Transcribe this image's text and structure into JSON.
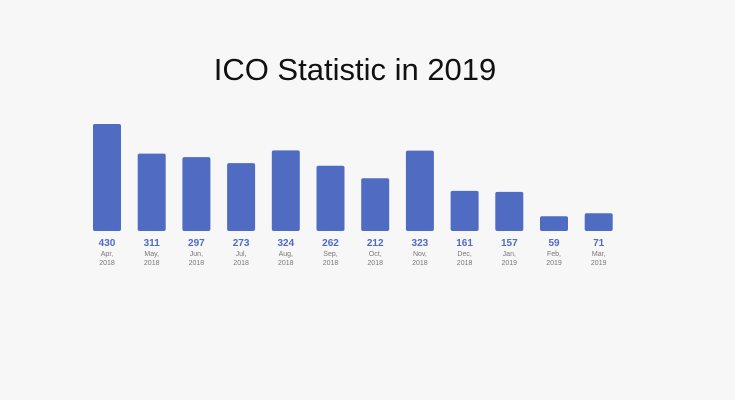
{
  "chart_data": {
    "type": "bar",
    "title": "ICO Statistic in 2019",
    "categories": [
      [
        "Apr,",
        "2018"
      ],
      [
        "May,",
        "2018"
      ],
      [
        "Jun,",
        "2018"
      ],
      [
        "Jul,",
        "2018"
      ],
      [
        "Aug,",
        "2018"
      ],
      [
        "Sep,",
        "2018"
      ],
      [
        "Oct,",
        "2018"
      ],
      [
        "Nov,",
        "2018"
      ],
      [
        "Dec,",
        "2018"
      ],
      [
        "Jan,",
        "2019"
      ],
      [
        "Feb,",
        "2019"
      ],
      [
        "Mar,",
        "2019"
      ]
    ],
    "values": [
      430,
      311,
      297,
      273,
      324,
      262,
      212,
      323,
      161,
      157,
      59,
      71
    ],
    "xlabel": "",
    "ylabel": "",
    "ylim": [
      0,
      430
    ],
    "grid": false,
    "legend": "none",
    "colors": {
      "bar": "#4f6bc2",
      "value_label": "#4f6bc2",
      "category_label": "#777777",
      "background": "#f7f7f7",
      "title": "#111111"
    }
  }
}
